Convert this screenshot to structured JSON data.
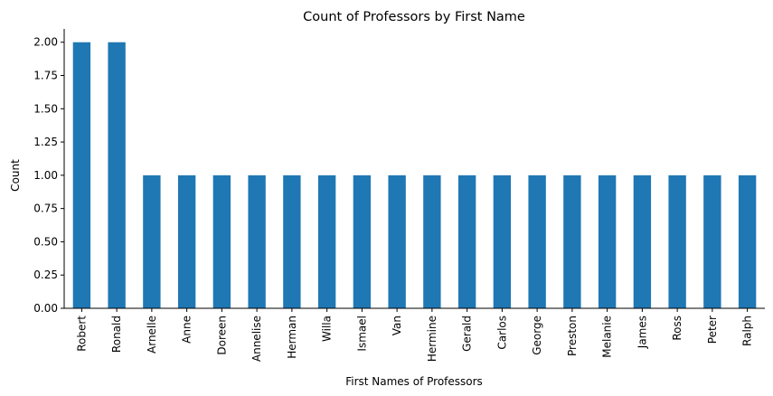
{
  "chart_data": {
    "type": "bar",
    "title": "Count of Professors by First Name",
    "xlabel": "First Names of Professors",
    "ylabel": "Count",
    "categories": [
      "Robert",
      "Ronald",
      "Arnelle",
      "Anne",
      "Doreen",
      "Annelise",
      "Herman",
      "Willa",
      "Ismael",
      "Van",
      "Hermine",
      "Gerald",
      "Carlos",
      "George",
      "Preston",
      "Melanie",
      "James",
      "Ross",
      "Peter",
      "Ralph"
    ],
    "values": [
      2,
      2,
      1,
      1,
      1,
      1,
      1,
      1,
      1,
      1,
      1,
      1,
      1,
      1,
      1,
      1,
      1,
      1,
      1,
      1
    ],
    "ylim": [
      0,
      2.1
    ],
    "yticks": [
      "0.00",
      "0.25",
      "0.50",
      "0.75",
      "1.00",
      "1.25",
      "1.50",
      "1.75",
      "2.00"
    ],
    "bar_color": "#1f77b4",
    "grid": false,
    "legend": "none"
  }
}
